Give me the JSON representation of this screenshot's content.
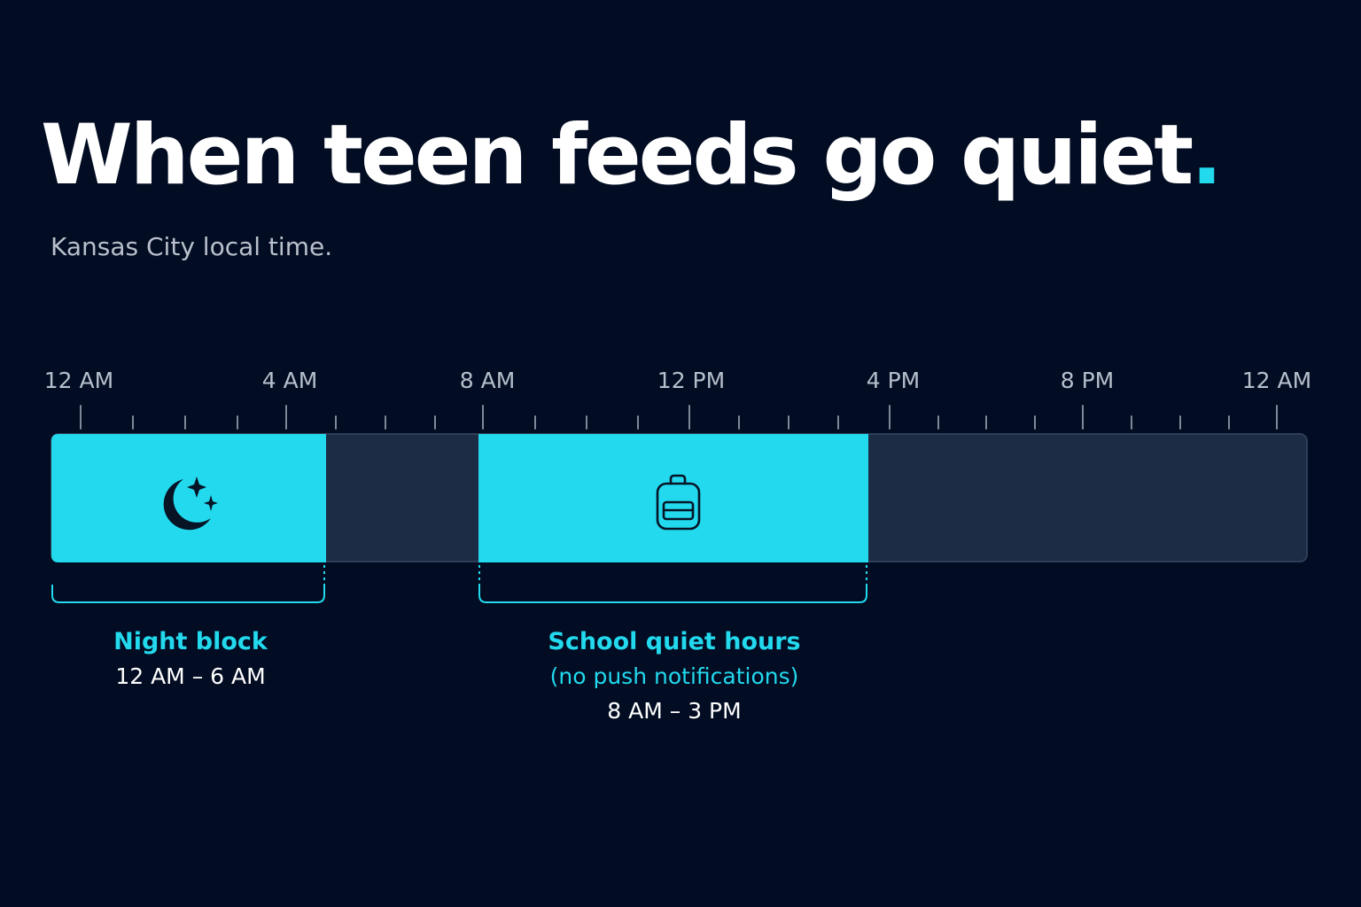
{
  "title": {
    "text": "When teen feeds go quiet",
    "dot": "."
  },
  "subtitle": "Kansas City local time.",
  "axis": {
    "ticks": [
      "12 AM",
      "4 AM",
      "8 AM",
      "12 PM",
      "4 PM",
      "8 PM",
      "12 AM"
    ]
  },
  "blocks": [
    {
      "title": "Night block",
      "note": "",
      "time": "12 AM – 6 AM",
      "icon": "moon-stars-icon"
    },
    {
      "title": "School quiet hours",
      "note": "(no push notifications)",
      "time": "8 AM – 3 PM",
      "icon": "backpack-icon"
    }
  ],
  "colors": {
    "background": "#020c22",
    "accent": "#22d9ee",
    "track": "#1c2c44",
    "title": "#ffffff",
    "subtitle": "#b9c0cc"
  }
}
